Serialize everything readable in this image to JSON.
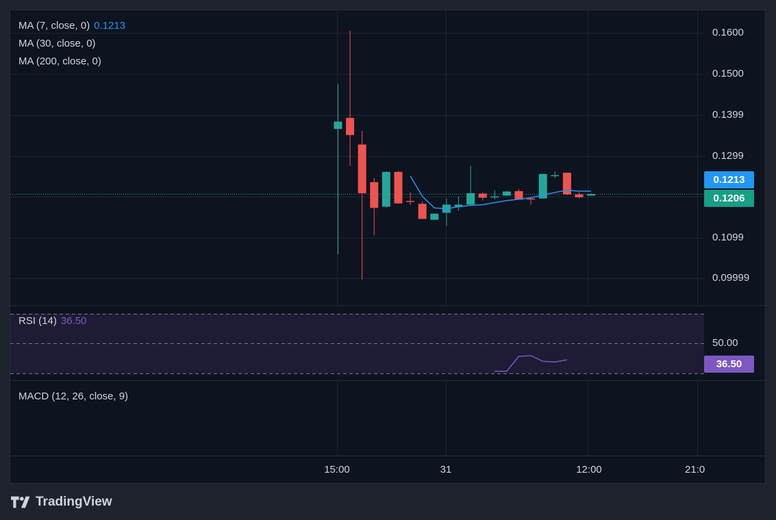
{
  "colors": {
    "background": "#0e1320",
    "grid": "#1f2431",
    "up": "#26a69a",
    "down": "#ef5350",
    "ma7": "#2196f3",
    "rsi": "#7e57c2",
    "last_price": "#16a085"
  },
  "legends": {
    "ma7": {
      "label": "MA (7, close, 0)",
      "value": "0.1213"
    },
    "ma30": {
      "label": "MA (30, close, 0)"
    },
    "ma200": {
      "label": "MA (200, close, 0)"
    },
    "rsi": {
      "label": "RSI (14)",
      "value": "36.50"
    },
    "macd": {
      "label": "MACD (12, 26, close, 9)"
    }
  },
  "price_tags": {
    "ma7": "0.1213",
    "last": "0.1206",
    "rsi": "36.50"
  },
  "chart_data": {
    "type": "candlestick",
    "y_ticks": [
      "0.1600",
      "0.1500",
      "0.1399",
      "0.1299",
      "0.1099",
      "0.09999"
    ],
    "ylim": [
      0.0935,
      0.1655
    ],
    "rsi_level_label": "50.00",
    "x_ticks": [
      "15:00",
      "31",
      "12:00",
      "21:0"
    ],
    "candles": [
      {
        "o": 0.1365,
        "h": 0.1475,
        "l": 0.1058,
        "c": 0.1383
      },
      {
        "o": 0.1392,
        "h": 0.1605,
        "l": 0.1275,
        "c": 0.135
      },
      {
        "o": 0.1327,
        "h": 0.136,
        "l": 0.0997,
        "c": 0.1208
      },
      {
        "o": 0.1235,
        "h": 0.1245,
        "l": 0.1105,
        "c": 0.1172
      },
      {
        "o": 0.1175,
        "h": 0.1262,
        "l": 0.1172,
        "c": 0.126
      },
      {
        "o": 0.126,
        "h": 0.1262,
        "l": 0.1182,
        "c": 0.1183
      },
      {
        "o": 0.1189,
        "h": 0.121,
        "l": 0.1179,
        "c": 0.1187
      },
      {
        "o": 0.1182,
        "h": 0.1188,
        "l": 0.1145,
        "c": 0.1145
      },
      {
        "o": 0.1143,
        "h": 0.1158,
        "l": 0.1143,
        "c": 0.1158
      },
      {
        "o": 0.116,
        "h": 0.1195,
        "l": 0.1128,
        "c": 0.118
      },
      {
        "o": 0.1175,
        "h": 0.12,
        "l": 0.1165,
        "c": 0.118
      },
      {
        "o": 0.118,
        "h": 0.1275,
        "l": 0.118,
        "c": 0.1208
      },
      {
        "o": 0.1207,
        "h": 0.121,
        "l": 0.119,
        "c": 0.1197
      },
      {
        "o": 0.1199,
        "h": 0.1215,
        "l": 0.1193,
        "c": 0.12
      },
      {
        "o": 0.1202,
        "h": 0.1213,
        "l": 0.1202,
        "c": 0.1212
      },
      {
        "o": 0.1213,
        "h": 0.1218,
        "l": 0.1192,
        "c": 0.1192
      },
      {
        "o": 0.1195,
        "h": 0.1197,
        "l": 0.118,
        "c": 0.1193
      },
      {
        "o": 0.1195,
        "h": 0.1255,
        "l": 0.1195,
        "c": 0.1255
      },
      {
        "o": 0.125,
        "h": 0.1262,
        "l": 0.1245,
        "c": 0.1252
      },
      {
        "o": 0.1258,
        "h": 0.1258,
        "l": 0.1203,
        "c": 0.1205
      },
      {
        "o": 0.1205,
        "h": 0.121,
        "l": 0.1195,
        "c": 0.1198
      },
      {
        "o": 0.1202,
        "h": 0.1208,
        "l": 0.1202,
        "c": 0.1206
      }
    ],
    "ma7": [
      null,
      null,
      null,
      null,
      null,
      null,
      0.125,
      0.12,
      0.1172,
      0.117,
      0.1175,
      0.1178,
      0.118,
      0.1185,
      0.119,
      0.1193,
      0.1197,
      0.1203,
      0.121,
      0.1215,
      0.1213,
      0.1213
    ],
    "rsi_ylim": [
      29,
      71
    ],
    "rsi": [
      null,
      null,
      null,
      null,
      null,
      null,
      null,
      null,
      null,
      null,
      null,
      null,
      null,
      30.5,
      30.5,
      41.0,
      41.5,
      37.5,
      37.0,
      38.5,
      null,
      null
    ]
  }
}
